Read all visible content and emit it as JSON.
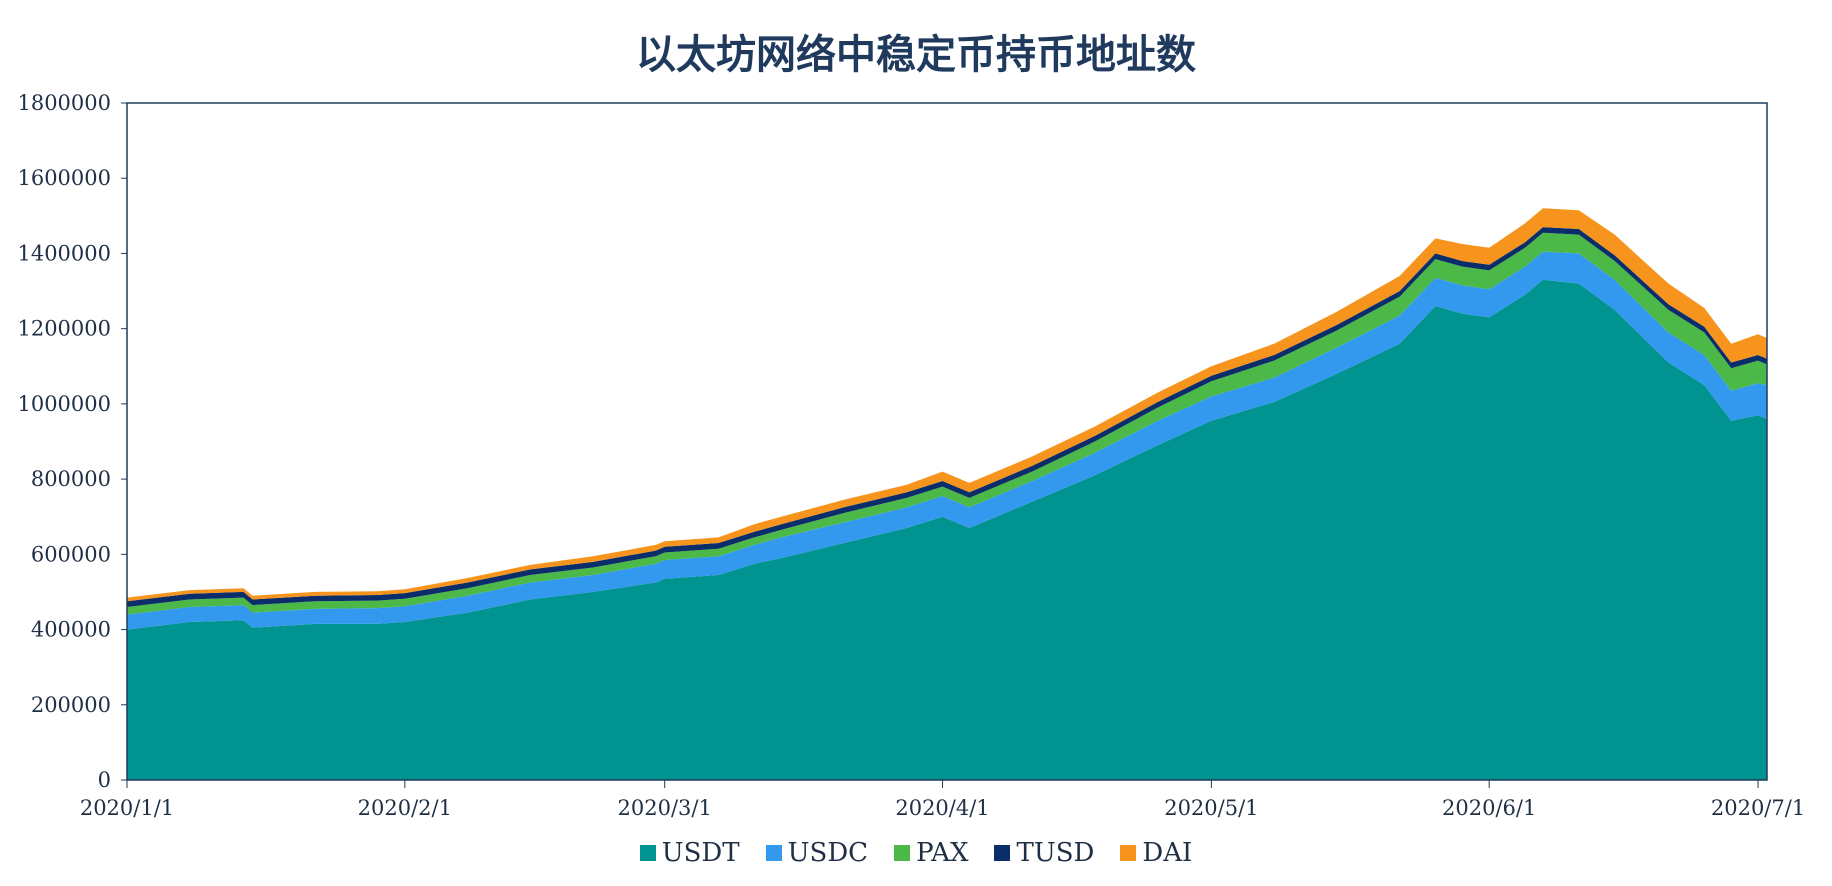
{
  "chart_data": {
    "type": "area",
    "stacked": true,
    "title": "以太坊网络中稳定币持币地址数",
    "xlabel": "",
    "ylabel": "",
    "ylim": [
      0,
      1800000
    ],
    "yticks": [
      "0",
      "200000",
      "400000",
      "600000",
      "800000",
      "1000000",
      "1200000",
      "1400000",
      "1600000",
      "1800000"
    ],
    "xticks": [
      "2020/1/1",
      "2020/2/1",
      "2020/3/1",
      "2020/4/1",
      "2020/5/1",
      "2020/6/1",
      "2020/7/1"
    ],
    "xrange": [
      "2020/1/1",
      "2020/7/2"
    ],
    "x": [
      "2020/1/1",
      "2020/1/8",
      "2020/1/14",
      "2020/1/15",
      "2020/1/22",
      "2020/1/29",
      "2020/2/1",
      "2020/2/8",
      "2020/2/15",
      "2020/2/22",
      "2020/2/29",
      "2020/3/1",
      "2020/3/7",
      "2020/3/11",
      "2020/3/14",
      "2020/3/21",
      "2020/3/28",
      "2020/4/1",
      "2020/4/4",
      "2020/4/11",
      "2020/4/18",
      "2020/4/25",
      "2020/5/1",
      "2020/5/8",
      "2020/5/15",
      "2020/5/22",
      "2020/5/26",
      "2020/5/29",
      "2020/6/1",
      "2020/6/5",
      "2020/6/7",
      "2020/6/11",
      "2020/6/15",
      "2020/6/18",
      "2020/6/21",
      "2020/6/25",
      "2020/6/28",
      "2020/7/1",
      "2020/7/2"
    ],
    "series": [
      {
        "name": "USDT",
        "color": "#009390",
        "values": [
          400000,
          420000,
          425000,
          405000,
          415000,
          415000,
          420000,
          445000,
          480000,
          500000,
          525000,
          535000,
          545000,
          575000,
          590000,
          630000,
          670000,
          700000,
          670000,
          740000,
          810000,
          890000,
          955000,
          1005000,
          1080000,
          1160000,
          1260000,
          1240000,
          1230000,
          1290000,
          1330000,
          1320000,
          1250000,
          1180000,
          1110000,
          1050000,
          955000,
          970000,
          960000
        ]
      },
      {
        "name": "USDC",
        "color": "#3399ee",
        "values": [
          40000,
          40000,
          40000,
          40000,
          40000,
          42000,
          42000,
          45000,
          45000,
          45000,
          50000,
          50000,
          50000,
          50000,
          55000,
          55000,
          55000,
          55000,
          55000,
          55000,
          60000,
          65000,
          65000,
          65000,
          70000,
          75000,
          75000,
          75000,
          75000,
          75000,
          75000,
          80000,
          80000,
          80000,
          80000,
          80000,
          80000,
          85000,
          90000
        ]
      },
      {
        "name": "PAX",
        "color": "#4cb848",
        "values": [
          20000,
          20000,
          20000,
          20000,
          20000,
          20000,
          20000,
          20000,
          20000,
          20000,
          20000,
          20000,
          20000,
          20000,
          20000,
          25000,
          25000,
          25000,
          25000,
          25000,
          30000,
          35000,
          40000,
          45000,
          45000,
          50000,
          50000,
          50000,
          50000,
          50000,
          50000,
          50000,
          50000,
          55000,
          60000,
          60000,
          60000,
          60000,
          55000
        ]
      },
      {
        "name": "TUSD",
        "color": "#0b2e6b",
        "values": [
          15000,
          15000,
          15000,
          15000,
          15000,
          15000,
          15000,
          15000,
          15000,
          15000,
          15000,
          15000,
          15000,
          15000,
          15000,
          15000,
          15000,
          15000,
          15000,
          15000,
          15000,
          15000,
          15000,
          15000,
          15000,
          15000,
          15000,
          15000,
          15000,
          15000,
          15000,
          15000,
          15000,
          15000,
          15000,
          15000,
          15000,
          15000,
          15000
        ]
      },
      {
        "name": "DAI",
        "color": "#f7941d",
        "values": [
          10000,
          10000,
          10000,
          10000,
          10000,
          10000,
          10000,
          12000,
          12000,
          15000,
          15000,
          15000,
          15000,
          20000,
          20000,
          20000,
          20000,
          25000,
          25000,
          25000,
          25000,
          25000,
          25000,
          30000,
          35000,
          40000,
          40000,
          45000,
          45000,
          50000,
          50000,
          50000,
          55000,
          55000,
          55000,
          50000,
          50000,
          55000,
          55000
        ]
      }
    ],
    "legend": {
      "position": "bottom",
      "items": [
        "USDT",
        "USDC",
        "PAX",
        "TUSD",
        "DAI"
      ]
    },
    "grid": false,
    "axis_color": "#1f3a5c"
  }
}
